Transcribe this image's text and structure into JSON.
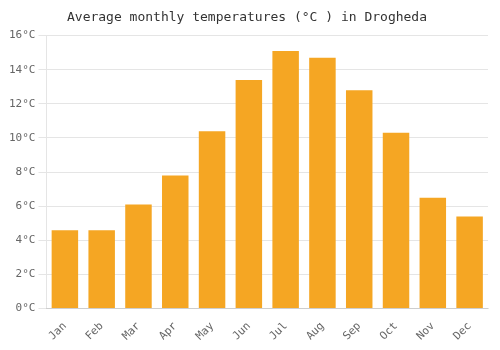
{
  "chart_data": {
    "type": "bar",
    "title": "Average monthly temperatures (°C ) in Drogheda",
    "categories": [
      "Jan",
      "Feb",
      "Mar",
      "Apr",
      "May",
      "Jun",
      "Jul",
      "Aug",
      "Sep",
      "Oct",
      "Nov",
      "Dec"
    ],
    "values": [
      4.6,
      4.6,
      6.1,
      7.8,
      10.4,
      13.4,
      15.1,
      14.7,
      12.8,
      10.3,
      6.5,
      5.4
    ],
    "color": "#F5A623",
    "ylim": [
      0,
      16
    ],
    "yticks": [
      {
        "value": 0,
        "label": "0°C"
      },
      {
        "value": 2,
        "label": "2°C"
      },
      {
        "value": 4,
        "label": "4°C"
      },
      {
        "value": 6,
        "label": "6°C"
      },
      {
        "value": 8,
        "label": "8°C"
      },
      {
        "value": 10,
        "label": "10°C"
      },
      {
        "value": 12,
        "label": "12°C"
      },
      {
        "value": 14,
        "label": "14°C"
      },
      {
        "value": 16,
        "label": "16°C"
      }
    ],
    "grid": true
  }
}
